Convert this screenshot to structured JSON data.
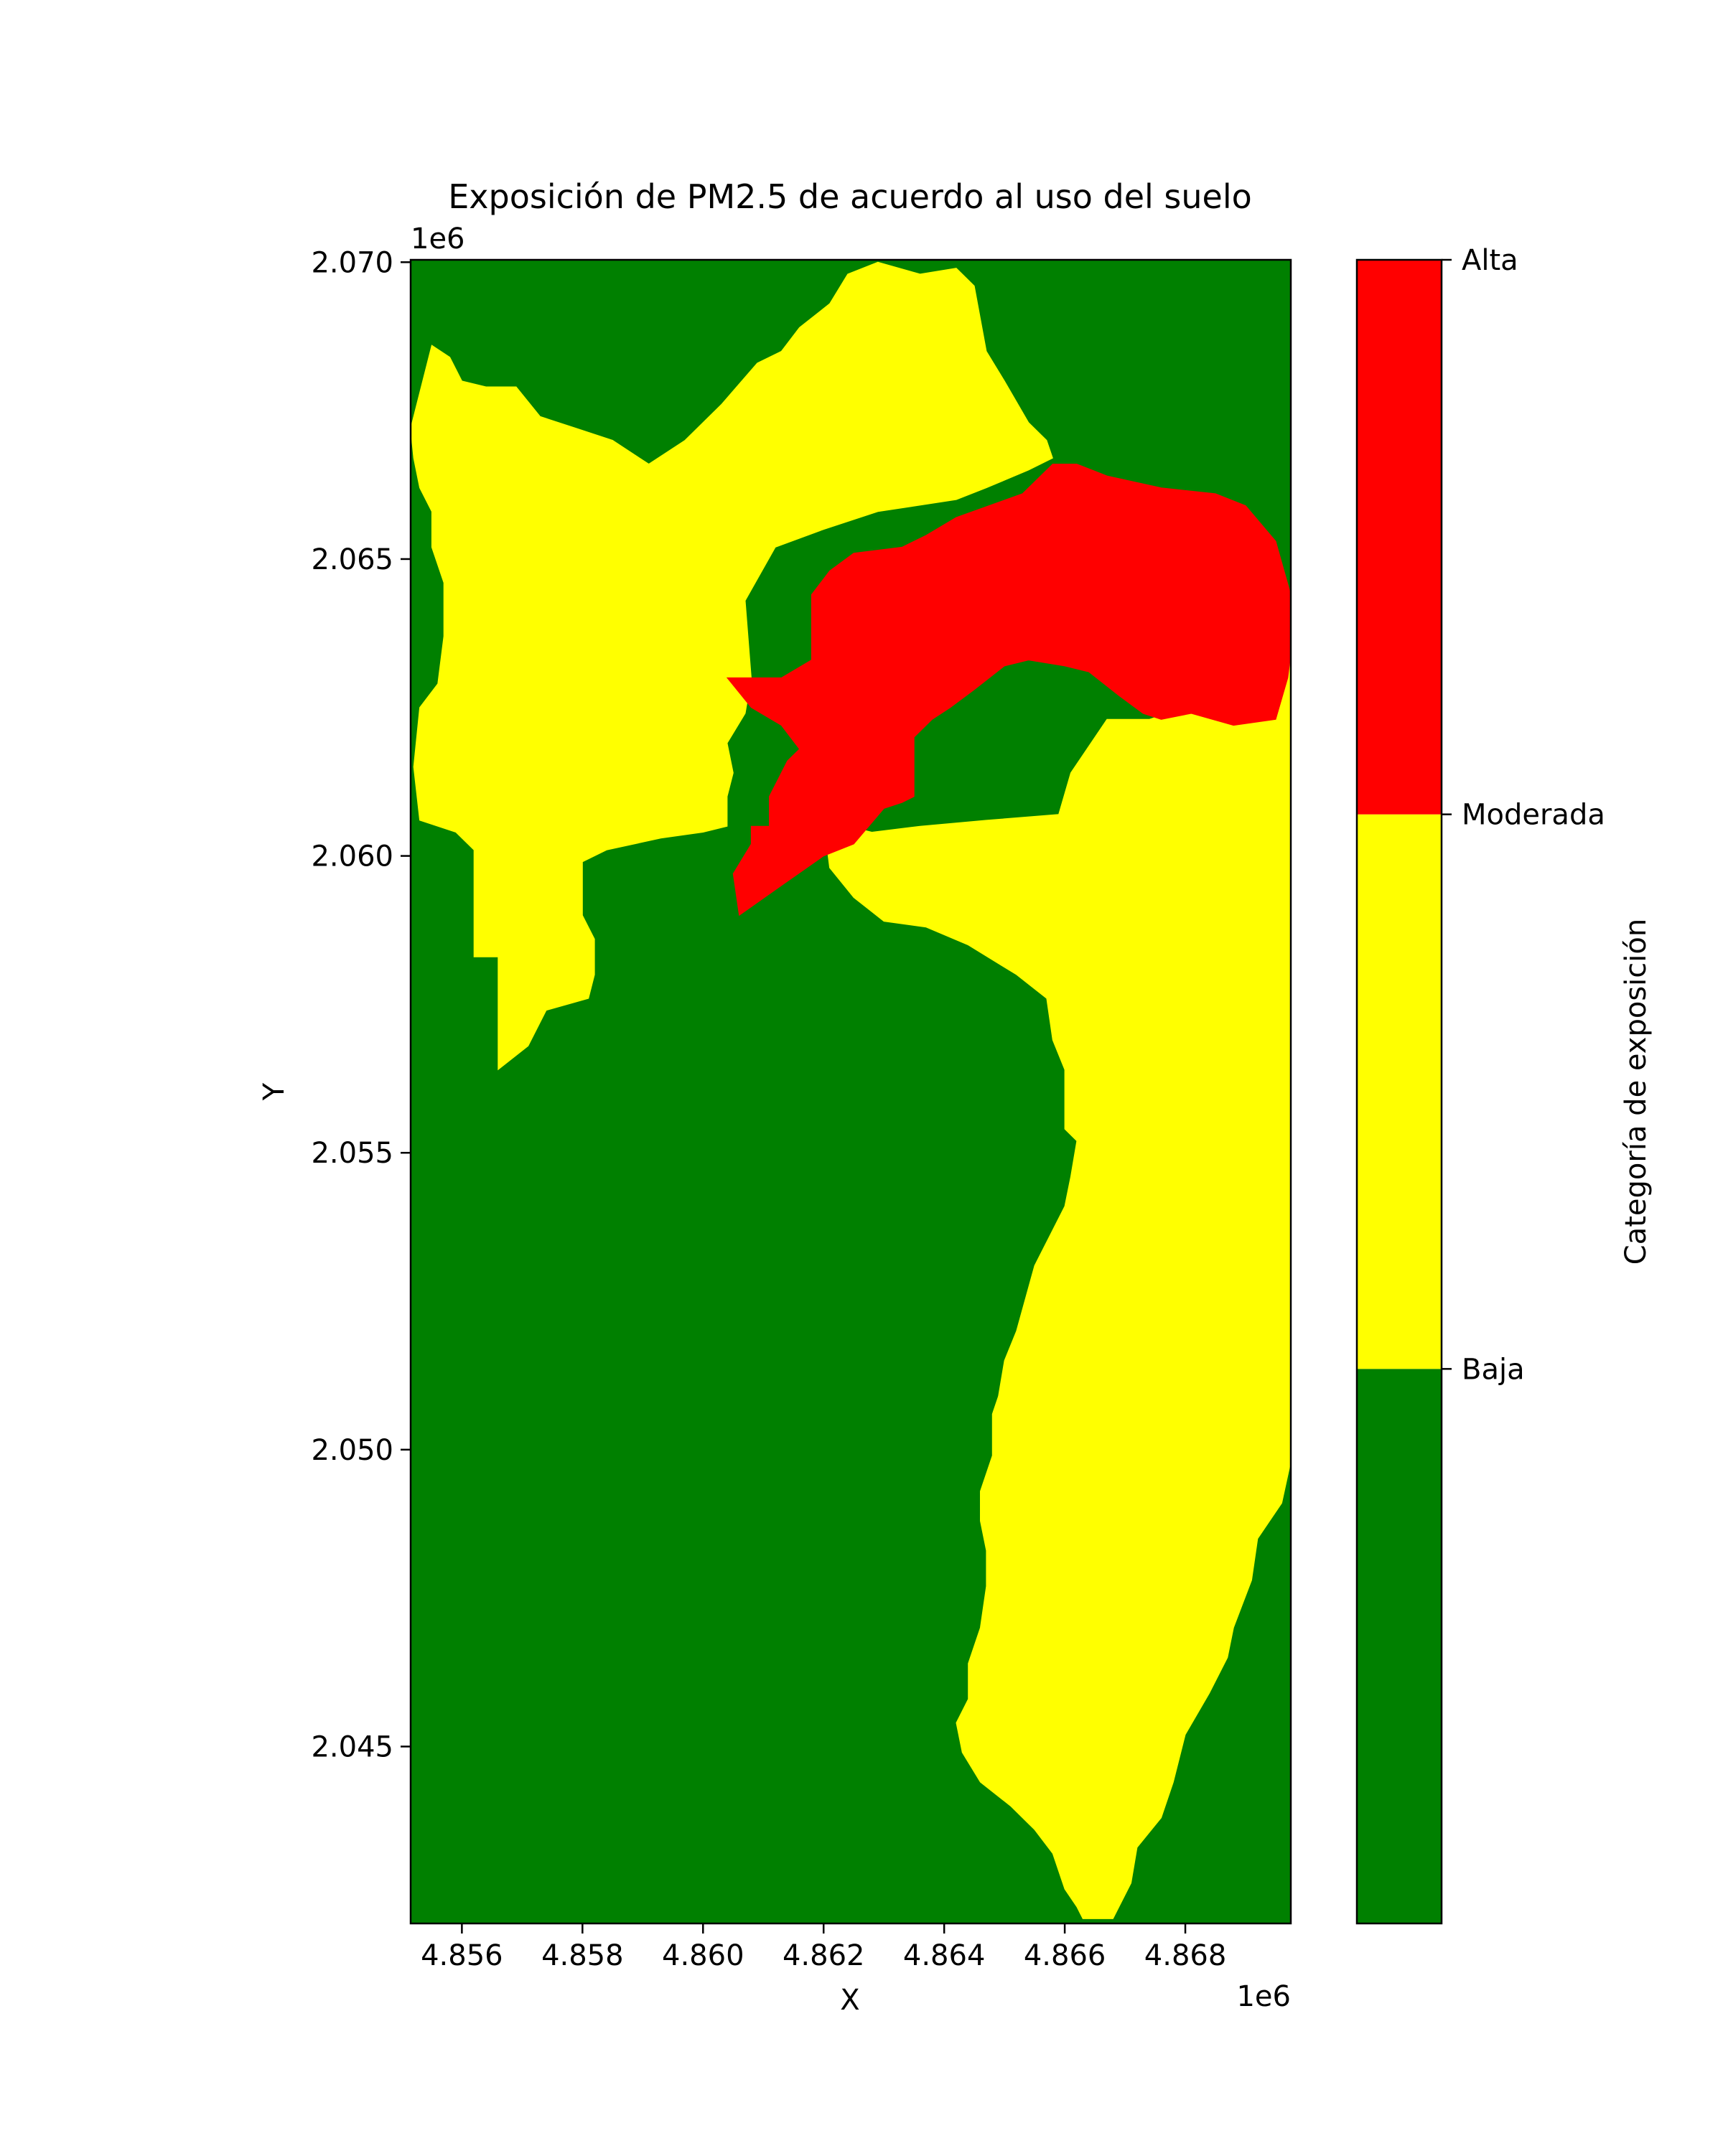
{
  "chart_data": {
    "type": "heatmap",
    "title": "Exposición de PM2.5 de acuerdo al uso del suelo",
    "xlabel": "X",
    "ylabel": "Y",
    "x_offset_label": "1e6",
    "y_offset_label": "1e6",
    "xlim": [
      4.85515,
      4.86975
    ],
    "ylim": [
      2.04202,
      2.07004
    ],
    "x_ticks": [
      "4.856",
      "4.858",
      "4.860",
      "4.862",
      "4.864",
      "4.866",
      "4.868"
    ],
    "y_ticks": [
      "2.045",
      "2.050",
      "2.055",
      "2.060",
      "2.065",
      "2.070"
    ],
    "colorbar": {
      "label": "Categoría de exposición",
      "categories": [
        {
          "name": "Baja",
          "color": "#008000"
        },
        {
          "name": "Moderada",
          "color": "#ffff00"
        },
        {
          "name": "Alta",
          "color": "#ff0000"
        }
      ],
      "tick_labels": [
        "Baja",
        "Moderada",
        "Alta"
      ]
    },
    "regions": [
      {
        "category": "Moderada",
        "color": "#ffff00",
        "polygons": [
          [
            [
              4.85515,
              2.0672
            ],
            [
              4.8553,
              2.0678
            ],
            [
              4.8555,
              2.0686
            ],
            [
              4.8558,
              2.0684
            ],
            [
              4.856,
              2.068
            ],
            [
              4.8564,
              2.0679
            ],
            [
              4.8569,
              2.0679
            ],
            [
              4.8573,
              2.0674
            ],
            [
              4.8579,
              2.0672
            ],
            [
              4.8585,
              2.067
            ],
            [
              4.8591,
              2.0666
            ],
            [
              4.8597,
              2.067
            ],
            [
              4.8603,
              2.0676
            ],
            [
              4.8609,
              2.0683
            ],
            [
              4.8613,
              2.0685
            ],
            [
              4.8616,
              2.0689
            ],
            [
              4.8621,
              2.0693
            ],
            [
              4.8624,
              2.0698
            ],
            [
              4.8629,
              2.07
            ],
            [
              4.8636,
              2.0698
            ],
            [
              4.8642,
              2.0699
            ],
            [
              4.8645,
              2.0696
            ],
            [
              4.8647,
              2.0685
            ],
            [
              4.865,
              2.068
            ],
            [
              4.8654,
              2.0673
            ],
            [
              4.8657,
              2.067
            ],
            [
              4.8658,
              2.0667
            ],
            [
              4.8654,
              2.0665
            ],
            [
              4.8647,
              2.0662
            ],
            [
              4.8642,
              2.066
            ],
            [
              4.8629,
              2.0658
            ],
            [
              4.862,
              2.0655
            ],
            [
              4.8612,
              2.0652
            ],
            [
              4.8607,
              2.0643
            ],
            [
              4.8608,
              2.063
            ],
            [
              4.8607,
              2.0624
            ],
            [
              4.8604,
              2.0619
            ],
            [
              4.8605,
              2.0614
            ],
            [
              4.8604,
              2.061
            ],
            [
              4.8604,
              2.0605
            ],
            [
              4.86,
              2.0604
            ],
            [
              4.8593,
              2.0603
            ],
            [
              4.8584,
              2.0601
            ],
            [
              4.858,
              2.0599
            ],
            [
              4.858,
              2.059
            ],
            [
              4.8582,
              2.0586
            ],
            [
              4.8582,
              2.058
            ],
            [
              4.8581,
              2.0576
            ],
            [
              4.8574,
              2.0574
            ],
            [
              4.8571,
              2.0568
            ],
            [
              4.8566,
              2.0564
            ],
            [
              4.8566,
              2.0583
            ],
            [
              4.8562,
              2.0583
            ],
            [
              4.8562,
              2.0592
            ],
            [
              4.8562,
              2.0601
            ],
            [
              4.8559,
              2.0604
            ],
            [
              4.8553,
              2.0606
            ],
            [
              4.8552,
              2.0615
            ],
            [
              4.8553,
              2.0625
            ],
            [
              4.8556,
              2.0629
            ],
            [
              4.8557,
              2.0637
            ],
            [
              4.8557,
              2.0646
            ],
            [
              4.8555,
              2.0652
            ],
            [
              4.8555,
              2.0658
            ],
            [
              4.8553,
              2.0662
            ],
            [
              4.8552,
              2.0667
            ]
          ],
          [
            [
              4.862,
              2.0606
            ],
            [
              4.8621,
              2.0598
            ],
            [
              4.8625,
              2.0593
            ],
            [
              4.863,
              2.0589
            ],
            [
              4.8637,
              2.0588
            ],
            [
              4.8644,
              2.0585
            ],
            [
              4.8652,
              2.058
            ],
            [
              4.8657,
              2.0576
            ],
            [
              4.8658,
              2.0569
            ],
            [
              4.866,
              2.0564
            ],
            [
              4.866,
              2.0558
            ],
            [
              4.866,
              2.0554
            ],
            [
              4.8662,
              2.0552
            ],
            [
              4.8661,
              2.0546
            ],
            [
              4.866,
              2.0541
            ],
            [
              4.8655,
              2.0531
            ],
            [
              4.8652,
              2.052
            ],
            [
              4.865,
              2.0515
            ],
            [
              4.8649,
              2.0509
            ],
            [
              4.8648,
              2.0506
            ],
            [
              4.8648,
              2.0499
            ],
            [
              4.8646,
              2.0493
            ],
            [
              4.8646,
              2.0488
            ],
            [
              4.8647,
              2.0483
            ],
            [
              4.8647,
              2.0477
            ],
            [
              4.8646,
              2.047
            ],
            [
              4.8644,
              2.0464
            ],
            [
              4.8644,
              2.0458
            ],
            [
              4.8642,
              2.0454
            ],
            [
              4.8643,
              2.0449
            ],
            [
              4.8646,
              2.0444
            ],
            [
              4.8651,
              2.044
            ],
            [
              4.8655,
              2.0436
            ],
            [
              4.8658,
              2.0432
            ],
            [
              4.866,
              2.0426
            ],
            [
              4.8662,
              2.0423
            ],
            [
              4.8663,
              2.0421
            ],
            [
              4.8668,
              2.0421
            ],
            [
              4.8671,
              2.0427
            ],
            [
              4.8672,
              2.0433
            ],
            [
              4.8676,
              2.0438
            ],
            [
              4.8678,
              2.0444
            ],
            [
              4.868,
              2.0452
            ],
            [
              4.8684,
              2.0459
            ],
            [
              4.8687,
              2.0465
            ],
            [
              4.8688,
              2.047
            ],
            [
              4.8691,
              2.0478
            ],
            [
              4.8692,
              2.0485
            ],
            [
              4.8696,
              2.0491
            ],
            [
              4.8699,
              2.0498
            ],
            [
              4.8699,
              2.0506
            ],
            [
              4.87,
              2.0516
            ],
            [
              4.8699,
              2.0526
            ],
            [
              4.8701,
              2.0534
            ],
            [
              4.8704,
              2.0539
            ],
            [
              4.8706,
              2.0548
            ],
            [
              4.8707,
              2.0554
            ],
            [
              4.8706,
              2.056
            ],
            [
              4.8707,
              2.0566
            ],
            [
              4.871,
              2.0574
            ],
            [
              4.8714,
              2.0582
            ],
            [
              4.8715,
              2.059
            ],
            [
              4.8718,
              2.0596
            ],
            [
              4.872,
              2.0602
            ],
            [
              4.8721,
              2.0611
            ],
            [
              4.8717,
              2.0617
            ],
            [
              4.8717,
              2.0625
            ],
            [
              4.8712,
              2.0631
            ],
            [
              4.8711,
              2.0632
            ],
            [
              4.871,
              2.0634
            ],
            [
              4.8704,
              2.0633
            ],
            [
              4.8696,
              2.0632
            ],
            [
              4.869,
              2.063
            ],
            [
              4.8683,
              2.0626
            ],
            [
              4.8674,
              2.0623
            ],
            [
              4.8667,
              2.0623
            ],
            [
              4.8661,
              2.0614
            ],
            [
              4.8659,
              2.0607
            ],
            [
              4.8647,
              2.0606
            ],
            [
              4.8636,
              2.0605
            ],
            [
              4.8628,
              2.0604
            ]
          ]
        ]
      },
      {
        "category": "Alta",
        "color": "#ff0000",
        "polygons": [
          [
            [
              4.8604,
              2.063
            ],
            [
              4.8613,
              2.063
            ],
            [
              4.8618,
              2.0633
            ],
            [
              4.8618,
              2.0644
            ],
            [
              4.8621,
              2.0648
            ],
            [
              4.8625,
              2.0651
            ],
            [
              4.8633,
              2.0652
            ],
            [
              4.8637,
              2.0654
            ],
            [
              4.8642,
              2.0657
            ],
            [
              4.8653,
              2.0661
            ],
            [
              4.8658,
              2.0666
            ],
            [
              4.8662,
              2.0666
            ],
            [
              4.8667,
              2.0664
            ],
            [
              4.8676,
              2.0662
            ],
            [
              4.8685,
              2.0661
            ],
            [
              4.869,
              2.0659
            ],
            [
              4.8695,
              2.0653
            ],
            [
              4.8698,
              2.0644
            ],
            [
              4.8702,
              2.0639
            ],
            [
              4.8703,
              2.0634
            ],
            [
              4.8697,
              2.063
            ],
            [
              4.8695,
              2.0623
            ],
            [
              4.8688,
              2.0622
            ],
            [
              4.8681,
              2.0624
            ],
            [
              4.8676,
              2.0623
            ],
            [
              4.8673,
              2.0624
            ],
            [
              4.8669,
              2.0627
            ],
            [
              4.8664,
              2.0631
            ],
            [
              4.866,
              2.0632
            ],
            [
              4.8654,
              2.0633
            ],
            [
              4.865,
              2.0632
            ],
            [
              4.8645,
              2.0628
            ],
            [
              4.8641,
              2.0625
            ],
            [
              4.8638,
              2.0623
            ],
            [
              4.8635,
              2.062
            ],
            [
              4.8635,
              2.061
            ],
            [
              4.8633,
              2.0609
            ],
            [
              4.863,
              2.0608
            ],
            [
              4.8625,
              2.0602
            ],
            [
              4.862,
              2.06
            ],
            [
              4.8613,
              2.0595
            ],
            [
              4.8606,
              2.059
            ],
            [
              4.8605,
              2.0597
            ],
            [
              4.8608,
              2.0602
            ],
            [
              4.8608,
              2.0605
            ],
            [
              4.8611,
              2.0605
            ],
            [
              4.8611,
              2.061
            ],
            [
              4.8614,
              2.0616
            ],
            [
              4.8616,
              2.0618
            ],
            [
              4.8613,
              2.0622
            ],
            [
              4.8608,
              2.0625
            ]
          ]
        ]
      }
    ],
    "background_category": "Baja"
  }
}
